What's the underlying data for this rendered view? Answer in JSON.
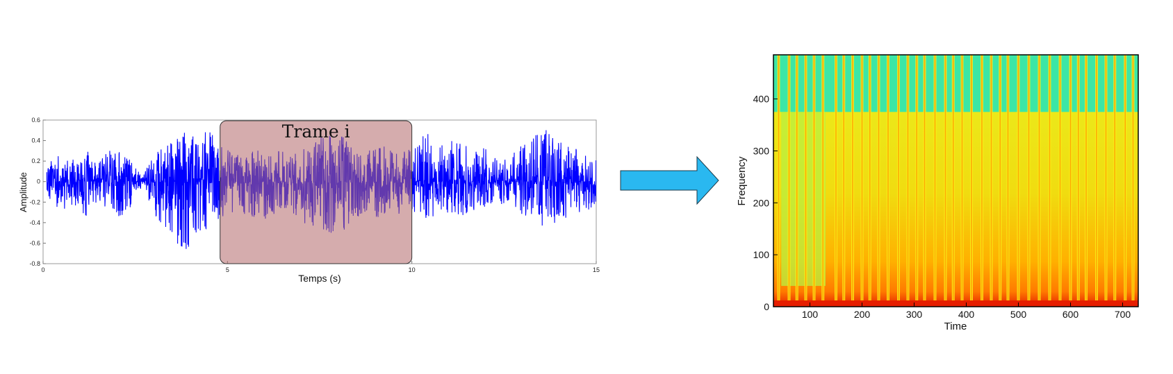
{
  "waveform_panel": {
    "frame_label": "Trame i",
    "frame_range": [
      4.8,
      10.0
    ]
  },
  "arrow": {
    "icon": "right-arrow-icon",
    "fill": "#2ab8f0"
  },
  "chart_data": [
    {
      "type": "line",
      "title": "",
      "xlabel": "Temps (s)",
      "ylabel": "Amplitude",
      "xlim": [
        0,
        15
      ],
      "ylim": [
        -0.8,
        0.6
      ],
      "xticks": [
        "0",
        "5",
        "10",
        "15"
      ],
      "yticks": [
        "-0.8",
        "-0.6",
        "-0.4",
        "-0.2",
        "0",
        "0.2",
        "0.4",
        "0.6"
      ],
      "series": [
        {
          "color": "#0000ff",
          "envelope": {
            "time": [
              0.1,
              0.4,
              0.8,
              1.2,
              1.5,
              1.8,
              2.1,
              2.4,
              2.7,
              3.0,
              3.3,
              3.6,
              3.9,
              4.2,
              4.5,
              4.8,
              5.2,
              5.6,
              6.0,
              6.4,
              6.8,
              7.2,
              7.6,
              8.0,
              8.4,
              8.8,
              9.2,
              9.6,
              10.0,
              10.4,
              10.8,
              11.2,
              11.6,
              12.0,
              12.4,
              12.8,
              13.2,
              13.6,
              14.0,
              14.4,
              14.8,
              15.0
            ],
            "upper": [
              0.18,
              0.25,
              0.22,
              0.3,
              0.18,
              0.35,
              0.3,
              0.22,
              0.05,
              0.28,
              0.38,
              0.45,
              0.52,
              0.48,
              0.5,
              0.35,
              0.28,
              0.3,
              0.35,
              0.3,
              0.28,
              0.38,
              0.45,
              0.48,
              0.35,
              0.3,
              0.35,
              0.28,
              0.33,
              0.5,
              0.35,
              0.45,
              0.3,
              0.33,
              0.2,
              0.3,
              0.42,
              0.55,
              0.4,
              0.35,
              0.3,
              0.25
            ],
            "lower": [
              -0.15,
              -0.3,
              -0.25,
              -0.35,
              -0.2,
              -0.3,
              -0.35,
              -0.25,
              -0.08,
              -0.3,
              -0.5,
              -0.62,
              -0.72,
              -0.55,
              -0.45,
              -0.35,
              -0.3,
              -0.35,
              -0.38,
              -0.3,
              -0.32,
              -0.45,
              -0.5,
              -0.55,
              -0.38,
              -0.3,
              -0.4,
              -0.35,
              -0.3,
              -0.42,
              -0.3,
              -0.35,
              -0.3,
              -0.25,
              -0.22,
              -0.3,
              -0.35,
              -0.45,
              -0.38,
              -0.32,
              -0.3,
              -0.2
            ]
          }
        }
      ],
      "highlight": {
        "x_range": [
          4.8,
          10.0
        ],
        "color": "#b3686a",
        "opacity": 0.55
      }
    },
    {
      "type": "heatmap",
      "title": "",
      "xlabel": "Time",
      "ylabel": "Frequency",
      "xlim": [
        30,
        730
      ],
      "ylim": [
        0,
        485
      ],
      "xticks": [
        100,
        200,
        300,
        400,
        500,
        600,
        700
      ],
      "yticks": [
        0,
        100,
        200,
        300,
        400
      ],
      "colormap": "jet",
      "low_energy_color": "#3ce6a6",
      "mid_energy_color": "#e8f020",
      "high_energy_color": "#e61e00",
      "upper_band_frequency": 375,
      "bright_columns": [
        40,
        60,
        75,
        92,
        108,
        125,
        150,
        165,
        182,
        200,
        215,
        232,
        250,
        270,
        288,
        305,
        320,
        340,
        360,
        375,
        392,
        410,
        430,
        448,
        465,
        480,
        500,
        520,
        540,
        560,
        580,
        600,
        615,
        630,
        650,
        668,
        685,
        705,
        720
      ],
      "quiet_regions": [
        [
          45,
          130
        ]
      ]
    }
  ]
}
